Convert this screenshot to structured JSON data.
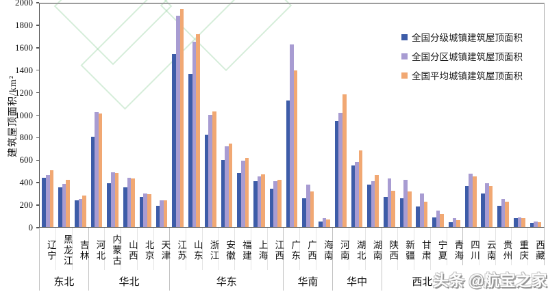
{
  "chart_data": {
    "type": "bar",
    "title": "",
    "ylabel": "建筑屋顶面积/km²",
    "ylim": [
      0,
      2000
    ],
    "ytick_step": 200,
    "grid": false,
    "legend_position": "inside-top-right",
    "series": [
      {
        "name": "全国分级城镇建筑屋顶面积",
        "color": "#3D5CA8"
      },
      {
        "name": "全国分区城镇建筑屋顶面积",
        "color": "#A89CD2"
      },
      {
        "name": "全国平均城镇建筑屋顶面积",
        "color": "#F1A873"
      }
    ],
    "regions": [
      {
        "label": "东北",
        "provinces": [
          {
            "label": "辽宁",
            "values": [
              435,
              460,
              505
            ]
          },
          {
            "label": "黑龙江",
            "values": [
              350,
              385,
              420
            ]
          },
          {
            "label": "吉林",
            "values": [
              235,
              250,
              280
            ]
          }
        ]
      },
      {
        "label": "华北",
        "provinces": [
          {
            "label": "河北",
            "values": [
              805,
              1020,
              1010
            ]
          },
          {
            "label": "内蒙古",
            "values": [
              390,
              485,
              480
            ]
          },
          {
            "label": "山西",
            "values": [
              350,
              435,
              430
            ]
          },
          {
            "label": "北京",
            "values": [
              265,
              295,
              290
            ]
          },
          {
            "label": "天津",
            "values": [
              190,
              240,
              235
            ]
          }
        ]
      },
      {
        "label": "华东",
        "provinces": [
          {
            "label": "江苏",
            "values": [
              1540,
              1880,
              1940
            ]
          },
          {
            "label": "山东",
            "values": [
              1360,
              1650,
              1715
            ]
          },
          {
            "label": "浙江",
            "values": [
              820,
              995,
              1030
            ]
          },
          {
            "label": "安徽",
            "values": [
              595,
              715,
              740
            ]
          },
          {
            "label": "福建",
            "values": [
              480,
              590,
              615
            ]
          },
          {
            "label": "上海",
            "values": [
              405,
              450,
              470
            ]
          },
          {
            "label": "江西",
            "values": [
              340,
              410,
              420
            ]
          }
        ]
      },
      {
        "label": "华南",
        "provinces": [
          {
            "label": "广东",
            "values": [
              1125,
              1625,
              1390
            ]
          },
          {
            "label": "广西",
            "values": [
              255,
              375,
              315
            ]
          },
          {
            "label": "海南",
            "values": [
              50,
              78,
              64
            ]
          }
        ]
      },
      {
        "label": "华中",
        "provinces": [
          {
            "label": "河南",
            "values": [
              945,
              1015,
              1180
            ]
          },
          {
            "label": "湖北",
            "values": [
              548,
              578,
              680
            ]
          },
          {
            "label": "湖南",
            "values": [
              375,
              405,
              465
            ]
          }
        ]
      },
      {
        "label": "西北",
        "provinces": [
          {
            "label": "陕西",
            "values": [
              270,
              430,
              324
            ]
          },
          {
            "label": "新疆",
            "values": [
              256,
              418,
              317
            ]
          },
          {
            "label": "甘肃",
            "values": [
              184,
              297,
              224
            ]
          },
          {
            "label": "宁夏",
            "values": [
              88,
              148,
              114
            ]
          },
          {
            "label": "青海",
            "values": [
              44,
              80,
              61
            ]
          }
        ]
      },
      {
        "label": "西南",
        "provinces": [
          {
            "label": "四川",
            "values": [
              362,
              474,
              447
            ]
          },
          {
            "label": "云南",
            "values": [
              301,
              392,
              366
            ]
          },
          {
            "label": "贵州",
            "values": [
              189,
              250,
              224
            ]
          },
          {
            "label": "重庆",
            "values": [
              77,
              88,
              82
            ]
          },
          {
            "label": "西藏",
            "values": [
              34,
              47,
              41
            ]
          }
        ]
      }
    ]
  },
  "watermark": {
    "brand": "头条",
    "handle": "@航宝之家"
  },
  "colors": {
    "axis": "#555555",
    "plot_border": "#ababab",
    "bg_logo_green": "#9ed4a5"
  }
}
